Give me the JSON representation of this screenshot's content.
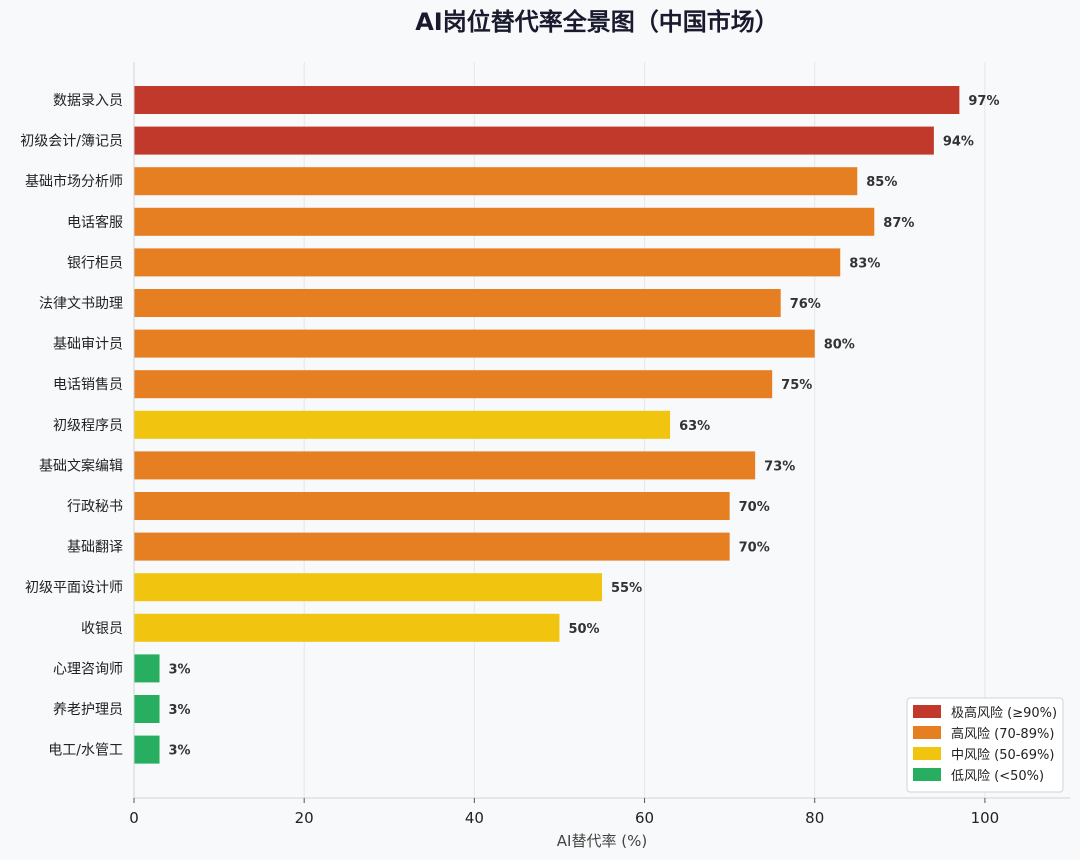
{
  "chart_data": {
    "type": "bar",
    "orientation": "horizontal",
    "title": "AI岗位替代率全景图（中国市场）",
    "xlabel": "AI替代率 (%)",
    "ylabel": "",
    "xlim": [
      0,
      110
    ],
    "xticks": [
      0,
      20,
      40,
      60,
      80,
      100
    ],
    "grid": "vertical",
    "legend_placement": "bottom-right",
    "value_suffix": "%",
    "categories": [
      "数据录入员",
      "初级会计/簿记员",
      "基础市场分析师",
      "电话客服",
      "银行柜员",
      "法律文书助理",
      "基础审计员",
      "电话销售员",
      "初级程序员",
      "基础文案编辑",
      "行政秘书",
      "基础翻译",
      "初级平面设计师",
      "收银员",
      "心理咨询师",
      "养老护理员",
      "电工/水管工"
    ],
    "values": [
      97,
      94,
      85,
      87,
      83,
      76,
      80,
      75,
      63,
      73,
      70,
      70,
      55,
      50,
      3,
      3,
      3
    ],
    "risk_levels": [
      "extreme",
      "extreme",
      "high",
      "high",
      "high",
      "high",
      "high",
      "high",
      "medium",
      "high",
      "high",
      "high",
      "medium",
      "medium",
      "low",
      "low",
      "low"
    ],
    "legend": [
      {
        "key": "extreme",
        "label": "极高风险 (≥90%)",
        "color": "#c0392b"
      },
      {
        "key": "high",
        "label": "高风险 (70-89%)",
        "color": "#e67e22"
      },
      {
        "key": "medium",
        "label": "中风险 (50-69%)",
        "color": "#f1c40f"
      },
      {
        "key": "low",
        "label": "低风险 (<50%)",
        "color": "#27ae60"
      }
    ]
  }
}
